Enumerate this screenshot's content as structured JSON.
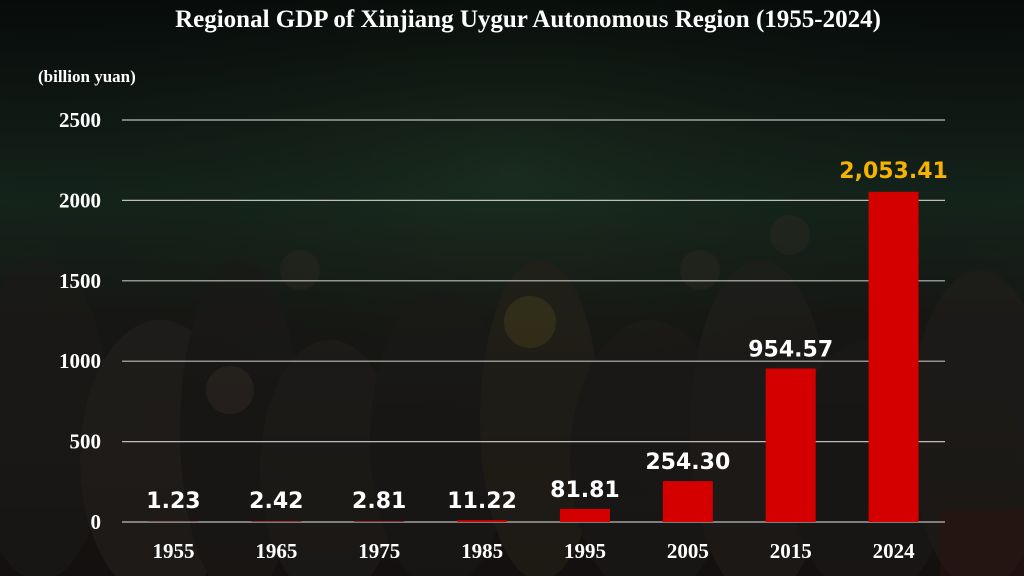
{
  "chart_data": {
    "type": "bar",
    "title": "Regional GDP of Xinjiang Uygur Autonomous Region (1955-2024)",
    "ylabel": "(billion yuan)",
    "xlabel": "",
    "categories": [
      "1955",
      "1965",
      "1975",
      "1985",
      "1995",
      "2005",
      "2015",
      "2024"
    ],
    "values": [
      1.23,
      2.42,
      2.81,
      11.22,
      81.81,
      254.3,
      954.57,
      2053.41
    ],
    "value_labels": [
      "1.23",
      "2.42",
      "2.81",
      "11.22",
      "81.81",
      "254.30",
      "954.57",
      "2,053.41"
    ],
    "ylim": [
      0,
      2500
    ],
    "yticks": [
      0,
      500,
      1000,
      1500,
      2000,
      2500
    ],
    "grid": true,
    "legend": "none",
    "colors": {
      "bar": "#d40000",
      "label": "#ffffff",
      "highlight_label": "#f5b300",
      "grid": "#d9d9d9"
    },
    "highlight_index": 7
  }
}
